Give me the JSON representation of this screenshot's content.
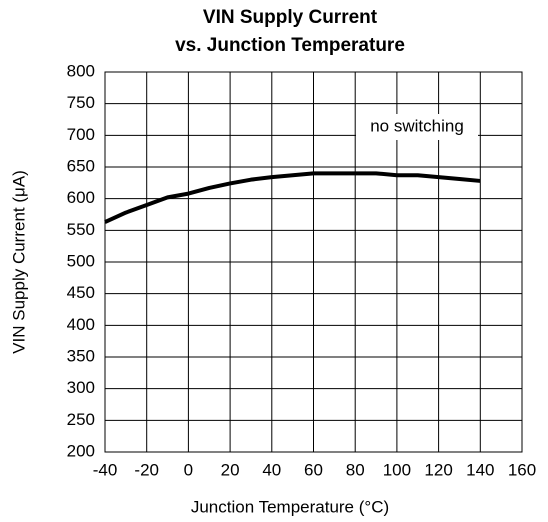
{
  "chart_data": {
    "type": "line",
    "title": [
      "VIN Supply Current",
      "vs. Junction Temperature"
    ],
    "xlabel": "Junction Temperature (°C)",
    "ylabel": "VIN Supply Current (μA)",
    "annotation": "no switching",
    "x": [
      -40,
      -30,
      -20,
      -10,
      0,
      10,
      20,
      30,
      40,
      50,
      60,
      70,
      80,
      90,
      100,
      110,
      120,
      130,
      140
    ],
    "series": [
      {
        "color": "#000000",
        "values": [
          563,
          578,
          590,
          602,
          608,
          617,
          624,
          630,
          634,
          637,
          640,
          640,
          640,
          640,
          637,
          637,
          634,
          631,
          628
        ]
      }
    ],
    "xlim": [
      -40,
      160
    ],
    "xticks": [
      -40,
      -20,
      0,
      20,
      40,
      60,
      80,
      100,
      120,
      140,
      160
    ],
    "ylim": [
      200,
      800
    ],
    "yticks": [
      200,
      250,
      300,
      350,
      400,
      450,
      500,
      550,
      600,
      650,
      700,
      750,
      800
    ],
    "grid": true
  }
}
